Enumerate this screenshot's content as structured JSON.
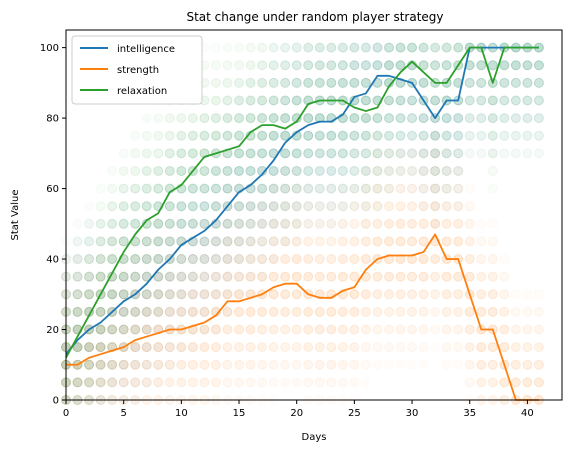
{
  "chart_data": {
    "type": "line",
    "title": "Stat change under random player strategy",
    "xlabel": "Days",
    "ylabel": "Stat Value",
    "xlim": [
      0,
      43
    ],
    "ylim": [
      0,
      105
    ],
    "xticks": [
      0,
      5,
      10,
      15,
      20,
      25,
      30,
      35,
      40
    ],
    "yticks": [
      0,
      20,
      40,
      60,
      80,
      100
    ],
    "legend_position": "upper-left",
    "series": [
      {
        "name": "intelligence",
        "color": "#1f77b4",
        "x": [
          0,
          1,
          2,
          3,
          4,
          5,
          6,
          7,
          8,
          9,
          10,
          11,
          12,
          13,
          14,
          15,
          16,
          17,
          18,
          19,
          20,
          21,
          22,
          23,
          24,
          25,
          26,
          27,
          28,
          29,
          30,
          31,
          32,
          33,
          34,
          35,
          36,
          37,
          38,
          39,
          40,
          41
        ],
        "values": [
          13,
          17,
          20,
          22,
          25,
          28,
          30,
          33,
          37,
          40,
          44,
          46,
          48,
          51,
          55,
          59,
          61,
          64,
          68,
          73,
          76,
          78,
          79,
          79,
          81,
          86,
          87,
          92,
          92,
          91,
          90,
          85,
          80,
          85,
          85,
          100,
          100,
          100,
          100,
          100,
          100,
          100
        ]
      },
      {
        "name": "strength",
        "color": "#ff7f0e",
        "x": [
          0,
          1,
          2,
          3,
          4,
          5,
          6,
          7,
          8,
          9,
          10,
          11,
          12,
          13,
          14,
          15,
          16,
          17,
          18,
          19,
          20,
          21,
          22,
          23,
          24,
          25,
          26,
          27,
          28,
          29,
          30,
          31,
          32,
          33,
          34,
          35,
          36,
          37,
          38,
          39,
          40,
          41
        ],
        "values": [
          10,
          10,
          12,
          13,
          14,
          15,
          17,
          18,
          19,
          20,
          20,
          21,
          22,
          24,
          28,
          28,
          29,
          30,
          32,
          33,
          33,
          30,
          29,
          29,
          31,
          32,
          37,
          40,
          41,
          41,
          41,
          42,
          47,
          40,
          40,
          30,
          20,
          20,
          10,
          0,
          0,
          0
        ]
      },
      {
        "name": "relaxation",
        "color": "#2ca02c",
        "x": [
          0,
          1,
          2,
          3,
          4,
          5,
          6,
          7,
          8,
          9,
          10,
          11,
          12,
          13,
          14,
          15,
          16,
          17,
          18,
          19,
          20,
          21,
          22,
          23,
          24,
          25,
          26,
          27,
          28,
          29,
          30,
          31,
          32,
          33,
          34,
          35,
          36,
          37,
          38,
          39,
          40,
          41
        ],
        "values": [
          12,
          18,
          24,
          30,
          36,
          42,
          47,
          51,
          53,
          59,
          61,
          65,
          69,
          70,
          71,
          72,
          76,
          78,
          78,
          77,
          79,
          84,
          85,
          85,
          85,
          83,
          82,
          83,
          89,
          93,
          96,
          93,
          90,
          90,
          95,
          100,
          100,
          90,
          100,
          100,
          100,
          100
        ]
      }
    ],
    "scatter_levels": [
      0,
      5,
      10,
      15,
      20,
      25,
      30,
      35,
      40,
      45,
      50,
      55,
      60,
      65,
      70,
      75,
      80,
      85,
      90,
      95,
      100
    ]
  }
}
